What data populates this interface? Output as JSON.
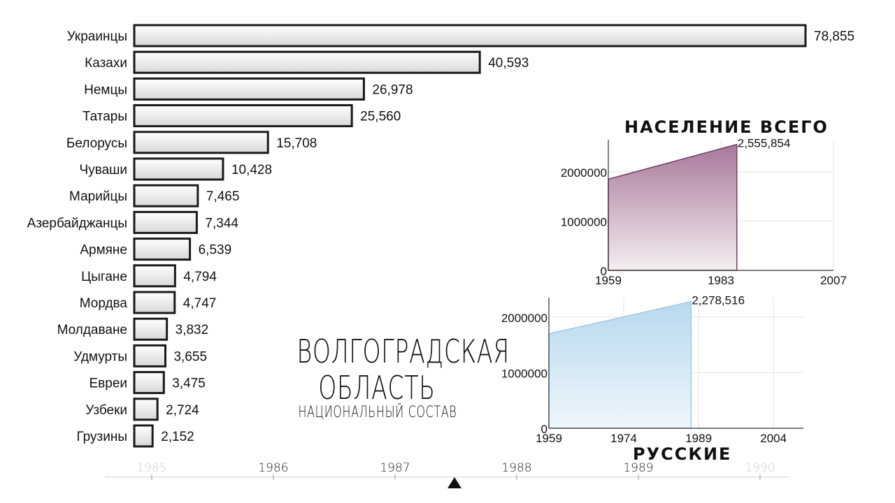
{
  "titles": {
    "line1": "Волгоградская",
    "line2": "область",
    "subtitle": "национальный состав"
  },
  "chart_data": [
    {
      "type": "bar",
      "categories": [
        "Украинцы",
        "Казахи",
        "Немцы",
        "Татары",
        "Белорусы",
        "Чуваши",
        "Марийцы",
        "Азербайджанцы",
        "Армяне",
        "Цыгане",
        "Мордва",
        "Молдаване",
        "Удмурты",
        "Евреи",
        "Узбеки",
        "Грузины"
      ],
      "values": [
        78855,
        40593,
        26978,
        25560,
        15708,
        10428,
        7465,
        7344,
        6539,
        4794,
        4747,
        3832,
        3655,
        3475,
        2724,
        2152
      ],
      "value_labels": [
        "78,855",
        "40,593",
        "26,978",
        "25,560",
        "15,708",
        "10,428",
        "7,465",
        "7,344",
        "6,539",
        "4,794",
        "4,747",
        "3,832",
        "3,655",
        "3,475",
        "2,724",
        "2,152"
      ],
      "colors": {
        "fill_top": "#ffffff",
        "fill_bottom": "#d8d8d8",
        "stroke": "#1a1a1a"
      }
    },
    {
      "type": "area",
      "title": "НАСЕЛЕНИЕ ВСЕГО",
      "x": [
        1959,
        1986.4
      ],
      "values": [
        1850000,
        2555854
      ],
      "end_label": "2,555,854",
      "xlim": [
        1959,
        2007
      ],
      "ylim": [
        0,
        2650000
      ],
      "xticks": [
        1959,
        1983,
        2007
      ],
      "xtick_labels": [
        "1959",
        "1983",
        "2007"
      ],
      "yticks": [
        0,
        1000000,
        2000000
      ],
      "ytick_labels": [
        "0",
        "1000000",
        "2000000"
      ],
      "grid": true,
      "colors": {
        "fill_top": "#a8789a",
        "fill_bottom": "#f4eef2",
        "stroke": "#7a3a66"
      }
    },
    {
      "type": "area",
      "title": "РУССКИЕ",
      "x": [
        1959,
        1987.5
      ],
      "values": [
        1700000,
        2278516
      ],
      "end_label": "2,278,516",
      "xlim": [
        1959,
        2010
      ],
      "ylim": [
        0,
        2350000
      ],
      "xticks": [
        1959,
        1974,
        1989,
        2004
      ],
      "xtick_labels": [
        "1959",
        "1974",
        "1989",
        "2004"
      ],
      "yticks": [
        0,
        1000000,
        2000000
      ],
      "ytick_labels": [
        "0",
        "1000000",
        "2000000"
      ],
      "grid": true,
      "colors": {
        "fill_top": "#b8d9ee",
        "fill_bottom": "#eef6fb",
        "stroke": "#9ccbe8"
      }
    }
  ],
  "timeline": {
    "years": [
      "1985",
      "1986",
      "1987",
      "1988",
      "1989",
      "1990"
    ],
    "current": 1987.5,
    "colors": {
      "active": "#222222",
      "faded": "#cfcfcf",
      "marker": "#111111"
    }
  }
}
